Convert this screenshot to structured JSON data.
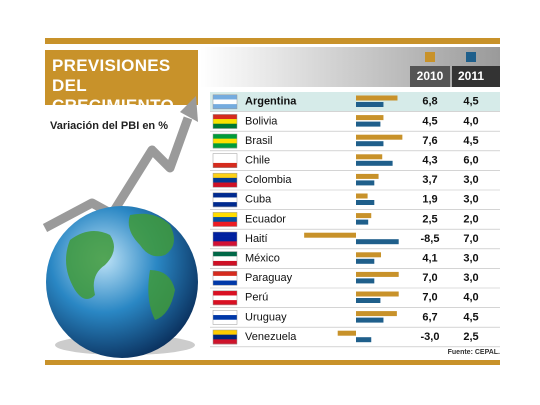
{
  "chart_data": {
    "type": "bar",
    "title": "PREVISIONES DEL CRECIMIENTO",
    "subtitle": "Variación del PBI en %",
    "source": "Fuente: CEPAL.",
    "categories": [
      "Argentina",
      "Bolivia",
      "Brasil",
      "Chile",
      "Colombia",
      "Cuba",
      "Ecuador",
      "Haití",
      "México",
      "Paraguay",
      "Perú",
      "Uruguay",
      "Venezuela"
    ],
    "series": [
      {
        "name": "2010",
        "color": "#c8922a",
        "values": [
          6.8,
          4.5,
          7.6,
          4.3,
          3.7,
          1.9,
          2.5,
          -8.5,
          4.1,
          7.0,
          7.0,
          6.7,
          -3.0
        ],
        "value_labels": [
          "6,8",
          "4,5",
          "7,6",
          "4,3",
          "3,7",
          "1,9",
          "2,5",
          "-8,5",
          "4,1",
          "7,0",
          "7,0",
          "6,7",
          "-3,0"
        ]
      },
      {
        "name": "2011",
        "color": "#1f5f8b",
        "values": [
          4.5,
          4.0,
          4.5,
          6.0,
          3.0,
          3.0,
          2.0,
          7.0,
          3.0,
          3.0,
          4.0,
          4.5,
          2.5
        ],
        "value_labels": [
          "4,5",
          "4,0",
          "4,5",
          "6,0",
          "3,0",
          "3,0",
          "2,0",
          "7,0",
          "3,0",
          "3,0",
          "4,0",
          "4,5",
          "2,5"
        ]
      }
    ]
  }
}
